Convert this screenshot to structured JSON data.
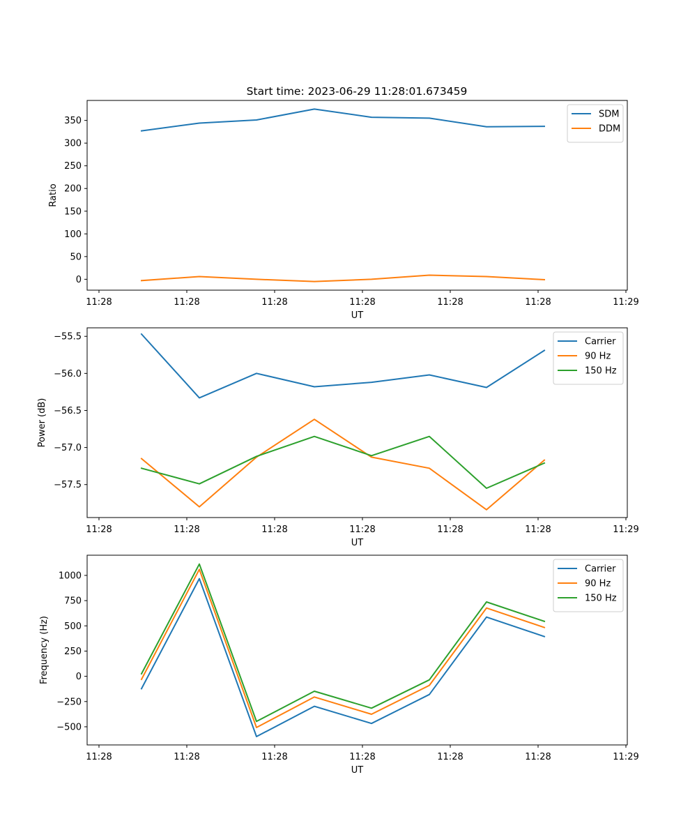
{
  "figure": {
    "title": "Start time: 2023-06-29 11:28:01.673459"
  },
  "colors": {
    "blue": "#1f77b4",
    "orange": "#ff7f0e",
    "green": "#2ca02c"
  },
  "chart_data": [
    {
      "type": "line",
      "xlabel": "UT",
      "ylabel": "Ratio",
      "x": [
        "11:28",
        "11:28",
        "11:28",
        "11:28",
        "11:28",
        "11:28",
        "11:28",
        "11:28"
      ],
      "xtick_labels": [
        "11:28",
        "11:28",
        "11:28",
        "11:28",
        "11:28",
        "11:28",
        "11:29"
      ],
      "yticks": [
        0,
        50,
        100,
        150,
        200,
        250,
        300,
        350
      ],
      "ytick_labels": [
        "0",
        "50",
        "100",
        "150",
        "200",
        "250",
        "300",
        "350"
      ],
      "ylim": [
        -24,
        394
      ],
      "grid": false,
      "legend_position": "upper right",
      "series": [
        {
          "name": "SDM",
          "color": "#1f77b4",
          "values": [
            327,
            344,
            351,
            375,
            357,
            355,
            336,
            337
          ]
        },
        {
          "name": "DDM",
          "color": "#ff7f0e",
          "values": [
            -3,
            6,
            0,
            -5,
            0,
            9,
            6,
            -1
          ]
        }
      ]
    },
    {
      "type": "line",
      "xlabel": "UT",
      "ylabel": "Power (dB)",
      "x": [
        "11:28",
        "11:28",
        "11:28",
        "11:28",
        "11:28",
        "11:28",
        "11:28",
        "11:28"
      ],
      "xtick_labels": [
        "11:28",
        "11:28",
        "11:28",
        "11:28",
        "11:28",
        "11:28",
        "11:29"
      ],
      "yticks": [
        -55.5,
        -56.0,
        -56.5,
        -57.0,
        -57.5
      ],
      "ytick_labels": [
        "−55.5",
        "−56.0",
        "−56.5",
        "−57.0",
        "−57.5"
      ],
      "ylim": [
        -57.945,
        -55.385
      ],
      "grid": false,
      "legend_position": "upper right",
      "series": [
        {
          "name": "Carrier",
          "color": "#1f77b4",
          "values": [
            -55.47,
            -56.33,
            -56.0,
            -56.18,
            -56.12,
            -56.02,
            -56.19,
            -55.69
          ]
        },
        {
          "name": "90 Hz",
          "color": "#ff7f0e",
          "values": [
            -57.15,
            -57.8,
            -57.13,
            -56.62,
            -57.13,
            -57.28,
            -57.84,
            -57.17
          ]
        },
        {
          "name": "150 Hz",
          "color": "#2ca02c",
          "values": [
            -57.28,
            -57.49,
            -57.12,
            -56.85,
            -57.11,
            -56.85,
            -57.55,
            -57.21
          ]
        }
      ]
    },
    {
      "type": "line",
      "xlabel": "UT",
      "ylabel": "Frequency (Hz)",
      "x": [
        "11:28",
        "11:28",
        "11:28",
        "11:28",
        "11:28",
        "11:28",
        "11:28",
        "11:28"
      ],
      "xtick_labels": [
        "11:28",
        "11:28",
        "11:28",
        "11:28",
        "11:28",
        "11:28",
        "11:29"
      ],
      "yticks": [
        1000,
        750,
        500,
        250,
        0,
        -250,
        -500
      ],
      "ytick_labels": [
        "1000",
        "750",
        "500",
        "250",
        "0",
        "−250",
        "−500"
      ],
      "ylim": [
        -680,
        1200
      ],
      "grid": false,
      "legend_position": "upper right",
      "series": [
        {
          "name": "Carrier",
          "color": "#1f77b4",
          "values": [
            -123,
            968,
            -597,
            -297,
            -467,
            -180,
            587,
            394
          ]
        },
        {
          "name": "90 Hz",
          "color": "#ff7f0e",
          "values": [
            -30,
            1060,
            -507,
            -205,
            -376,
            -90,
            677,
            484
          ]
        },
        {
          "name": "150 Hz",
          "color": "#2ca02c",
          "values": [
            25,
            1112,
            -447,
            -148,
            -316,
            -35,
            737,
            545
          ]
        }
      ]
    }
  ]
}
